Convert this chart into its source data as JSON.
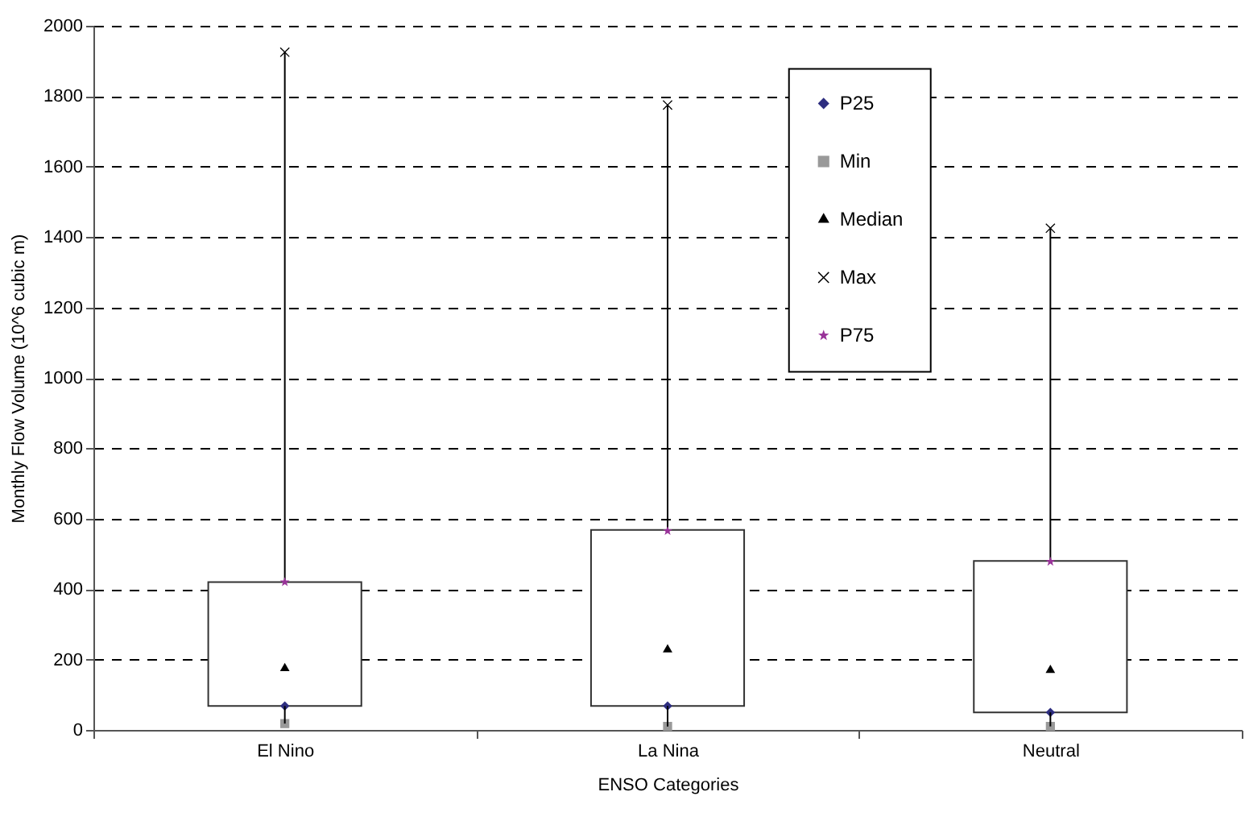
{
  "chart_data": {
    "type": "box",
    "xlabel": "ENSO Categories",
    "ylabel": "Monthly Flow Volume (10^6 cubic m)",
    "categories": [
      "El Nino",
      "La Nina",
      "Neutral"
    ],
    "boxes": [
      {
        "low": 18,
        "q1": 68,
        "q3": 420,
        "high": 1925
      },
      {
        "low": 10,
        "q1": 68,
        "q3": 568,
        "high": 1775
      },
      {
        "low": 10,
        "q1": 50,
        "q3": 480,
        "high": 1425
      }
    ],
    "series": [
      {
        "name": "P25",
        "type": "scatter",
        "marker": "diamond",
        "color": "#2e2e80",
        "x": [
          "El Nino",
          "La Nina",
          "Neutral"
        ],
        "values": [
          68,
          68,
          50
        ]
      },
      {
        "name": "Min",
        "type": "scatter",
        "marker": "square",
        "color": "#999999",
        "x": [
          "El Nino",
          "La Nina",
          "Neutral"
        ],
        "values": [
          18,
          10,
          10
        ]
      },
      {
        "name": "Median",
        "type": "scatter",
        "marker": "triangle",
        "color": "#000000",
        "x": [
          "El Nino",
          "La Nina",
          "Neutral"
        ],
        "values": [
          175,
          228,
          170
        ]
      },
      {
        "name": "Max",
        "type": "scatter",
        "marker": "cross",
        "color": "#000000",
        "x": [
          "El Nino",
          "La Nina",
          "Neutral"
        ],
        "values": [
          1925,
          1775,
          1425
        ]
      },
      {
        "name": "P75",
        "type": "scatter",
        "marker": "star",
        "color": "#993399",
        "x": [
          "El Nino",
          "La Nina",
          "Neutral"
        ],
        "values": [
          420,
          565,
          478
        ]
      }
    ],
    "ylim": [
      0,
      2000
    ],
    "yticks": [
      0,
      200,
      400,
      600,
      800,
      1000,
      1200,
      1400,
      1600,
      1800,
      2000
    ],
    "grid": "y",
    "legend": "top"
  }
}
